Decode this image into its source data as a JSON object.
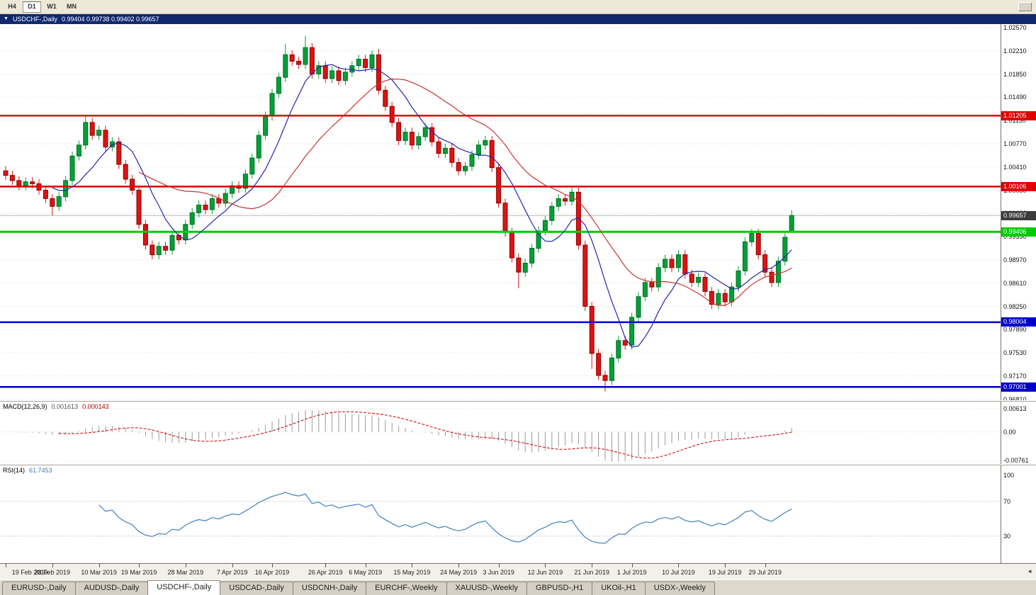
{
  "toolbar": {
    "timeframes": [
      "H4",
      "D1",
      "W1",
      "MN"
    ],
    "active": "D1"
  },
  "title_bar": {
    "marker": "▼",
    "symbol": "USDCHF-,Daily",
    "ohlc": "0.99404 0.99738 0.99402 0.99657"
  },
  "chart_data": {
    "type": "candlestick",
    "symbol": "USDCHF-",
    "timeframe": "Daily",
    "current_bar": {
      "open": 0.99404,
      "high": 0.99738,
      "low": 0.99402,
      "close": 0.99657
    },
    "current_price": 0.99657,
    "current_price_label": "0.99657",
    "first_open": 1.0035,
    "wick": 0.0007,
    "closes": [
      1.0028,
      1.002,
      1.0012,
      1.0018,
      1.0015,
      1.0005,
      0.9992,
      0.998,
      0.9995,
      1.002,
      1.0058,
      1.0075,
      1.011,
      1.009,
      1.0098,
      1.0072,
      1.008,
      1.0045,
      1.0022,
      1.0005,
      0.9952,
      0.992,
      0.9905,
      0.9918,
      0.9912,
      0.9935,
      0.9928,
      0.9952,
      0.997,
      0.9982,
      0.9975,
      0.9992,
      0.9985,
      1.0,
      1.0012,
      1.0008,
      1.003,
      1.0055,
      1.009,
      1.012,
      1.0155,
      1.018,
      1.0215,
      1.0205,
      1.02,
      1.0226,
      1.0185,
      1.0198,
      1.0178,
      1.019,
      1.0175,
      1.0188,
      1.0198,
      1.0208,
      1.0195,
      1.0215,
      1.016,
      1.0135,
      1.011,
      1.0082,
      1.0095,
      1.0075,
      1.0088,
      1.0102,
      1.008,
      1.0062,
      1.007,
      1.0048,
      1.0035,
      1.0042,
      1.006,
      1.0075,
      1.0082,
      1.004,
      0.9985,
      0.994,
      0.99,
      0.9878,
      0.9892,
      0.9915,
      0.9942,
      0.9958,
      0.998,
      0.9992,
      0.9988,
      1.0002,
      0.992,
      0.9825,
      0.9752,
      0.9718,
      0.971,
      0.9745,
      0.9772,
      0.9765,
      0.9808,
      0.984,
      0.9862,
      0.9855,
      0.9885,
      0.9898,
      0.9885,
      0.9905,
      0.9875,
      0.9862,
      0.987,
      0.9848,
      0.9828,
      0.9845,
      0.9832,
      0.9855,
      0.988,
      0.9925,
      0.9938,
      0.9905,
      0.9878,
      0.9862,
      0.9895,
      0.9932,
      0.99657
    ],
    "overrides": {
      "7": {
        "low": 0.9966
      },
      "12": {
        "high": 1.0121
      },
      "42": {
        "high": 1.0232
      },
      "45": {
        "high": 1.0244
      },
      "56": {
        "high": 1.0224
      },
      "77": {
        "low": 0.9853
      },
      "88": {
        "low": 0.9728
      },
      "90": {
        "low": 0.9693
      },
      "118": {
        "open": 0.99404,
        "high": 0.99738,
        "low": 0.99402,
        "close": 0.99657
      }
    },
    "hlines": [
      {
        "price": 1.01205,
        "label": "1.01205",
        "color": "#DE0000",
        "width": 2.5
      },
      {
        "price": 1.00106,
        "label": "1.00106",
        "color": "#DE0000",
        "width": 2.5
      },
      {
        "price": 0.99406,
        "label": "0.99406",
        "color": "#00CC00",
        "width": 3
      },
      {
        "price": 0.98004,
        "label": "0.98004",
        "color": "#0000CC",
        "width": 2.5
      },
      {
        "price": 0.97001,
        "label": "0.97001",
        "color": "#0000CC",
        "width": 2.5
      }
    ],
    "ma_fast_period": 8,
    "ma_slow_period": 21,
    "y_range": [
      0.96795,
      1.02625
    ],
    "macd_range": [
      -0.0085,
      0.008
    ],
    "rsi_range": [
      0,
      100
    ]
  },
  "price_scale": {
    "ticks": [
      "1.02570",
      "1.02210",
      "1.01850",
      "1.01490",
      "1.01130",
      "1.00770",
      "1.00410",
      "1.00050",
      "0.99690",
      "0.99330",
      "0.98970",
      "0.98610",
      "0.98250",
      "0.97890",
      "0.97530",
      "0.97170",
      "0.96810"
    ]
  },
  "macd": {
    "label": "MACD(12,26,9)",
    "value_main": "0.001613",
    "value_signal": "0.000143",
    "axis_labels": [
      "0.00613",
      "0.00",
      "-0.00761"
    ],
    "axis_values": [
      0.00613,
      0,
      -0.00761
    ]
  },
  "rsi": {
    "label": "RSI(14)",
    "value": "61.7453",
    "axis_labels": [
      "100",
      "70",
      "30"
    ],
    "axis_values": [
      100,
      70,
      30
    ],
    "levels": [
      70,
      30
    ]
  },
  "time_scale": {
    "scroll_arrow": "◄",
    "labels": [
      {
        "text": "19 Feb 2019",
        "i": 0
      },
      {
        "text": "28 Feb 2019",
        "i": 7
      },
      {
        "text": "10 Mar 2019",
        "i": 14
      },
      {
        "text": "19 Mar 2019",
        "i": 20
      },
      {
        "text": "28 Mar 2019",
        "i": 27
      },
      {
        "text": "7 Apr 2019",
        "i": 34
      },
      {
        "text": "16 Apr 2019",
        "i": 40
      },
      {
        "text": "26 Apr 2019",
        "i": 48
      },
      {
        "text": "6 May 2019",
        "i": 54
      },
      {
        "text": "15 May 2019",
        "i": 61
      },
      {
        "text": "24 May 2019",
        "i": 68
      },
      {
        "text": "3 Jun 2019",
        "i": 74
      },
      {
        "text": "12 Jun 2019",
        "i": 81
      },
      {
        "text": "21 Jun 2019",
        "i": 88
      },
      {
        "text": "1 Jul 2019",
        "i": 94
      },
      {
        "text": "10 Jul 2019",
        "i": 101
      },
      {
        "text": "19 Jul 2019",
        "i": 108
      },
      {
        "text": "29 Jul 2019",
        "i": 114
      }
    ]
  },
  "tabs": {
    "items": [
      "EURUSD-,Daily",
      "AUDUSD-,Daily",
      "USDCHF-,Daily",
      "USDCAD-,Daily",
      "USDCNH-,Daily",
      "EURCHF-,Weekly",
      "XAUUSD-,Weekly",
      "GBPUSD-,H1",
      "UKOil-,H1",
      "USDX-,Weekly"
    ],
    "active_index": 2
  },
  "colors": {
    "up": "#00A136",
    "up_border": "#006B24",
    "down": "#DE1212",
    "down_border": "#8E0000",
    "ma_fast": "#2424B0",
    "ma_slow": "#CC3333",
    "grid": "#DEDEDE",
    "current_line": "#B8B8B8",
    "macd_hist": "#9A9A9A",
    "macd_signal": "#CC0000",
    "rsi": "#4080C0",
    "current_tag": "#3C3C3C"
  }
}
